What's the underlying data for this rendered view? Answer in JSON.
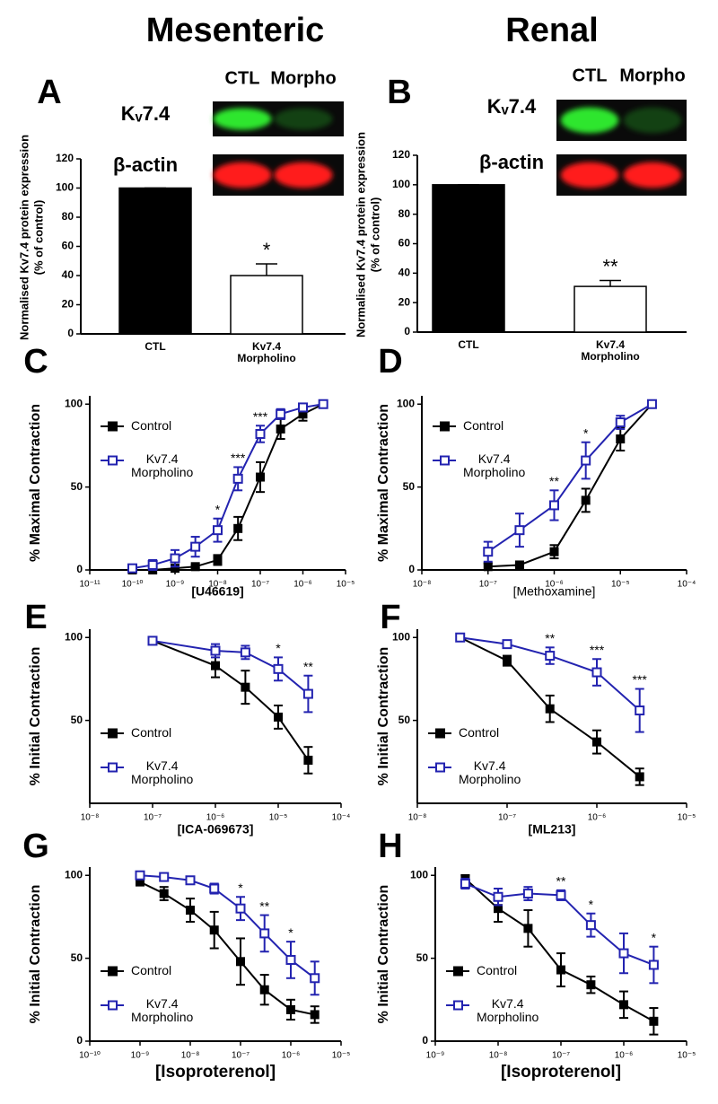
{
  "headers": [
    "Mesenteric",
    "Renal"
  ],
  "chart_data": [
    {
      "type": "bar",
      "panel": "A",
      "categories": [
        "CTL",
        "Kv7.4\nMorpholino"
      ],
      "values": [
        100,
        40
      ],
      "errors": [
        0,
        8
      ],
      "colors": [
        "#000000",
        "#ffffff"
      ],
      "ylabel": [
        "Normalised Kv7.4 protein expression",
        "(% of control)"
      ],
      "ylim": [
        0,
        120
      ],
      "yticks": [
        0,
        20,
        40,
        60,
        80,
        100,
        120
      ],
      "annotations": [
        {
          "text": "*",
          "category": 1
        }
      ],
      "blot": {
        "columns": [
          "CTL",
          "Morpho"
        ],
        "rows": [
          "Kᵥ7.4",
          "β-actin"
        ]
      }
    },
    {
      "type": "bar",
      "panel": "B",
      "categories": [
        "CTL",
        "Kv7.4\nMorpholino"
      ],
      "values": [
        100,
        31
      ],
      "errors": [
        0,
        4
      ],
      "colors": [
        "#000000",
        "#ffffff"
      ],
      "ylabel": [
        "Normalised Kv7.4 protein expression",
        "(% of control)"
      ],
      "ylim": [
        0,
        120
      ],
      "yticks": [
        0,
        20,
        40,
        60,
        80,
        100,
        120
      ],
      "annotations": [
        {
          "text": "**",
          "category": 1
        }
      ],
      "blot": {
        "columns": [
          "CTL",
          "Morpho"
        ],
        "rows": [
          "Kᵥ7.4",
          "β-actin"
        ]
      }
    },
    {
      "type": "line",
      "panel": "C",
      "xscale": "log",
      "x": [
        1e-10,
        3e-10,
        1e-09,
        3e-09,
        1e-08,
        3e-08,
        1e-07,
        3e-07,
        1e-06,
        3e-06
      ],
      "series": [
        {
          "name": "Control",
          "color": "#000000",
          "marker": "filled-square",
          "values": [
            0,
            0,
            1,
            2,
            6,
            25,
            56,
            85,
            94,
            100
          ],
          "errors": [
            0,
            0,
            1,
            1,
            3,
            7,
            9,
            6,
            4,
            0
          ]
        },
        {
          "name": "Kv7.4\nMorpholino",
          "color": "#2323b0",
          "marker": "open-square",
          "values": [
            1,
            3,
            7,
            14,
            24,
            55,
            82,
            94,
            98,
            100
          ],
          "errors": [
            1,
            3,
            5,
            6,
            7,
            7,
            5,
            3,
            2,
            0
          ]
        }
      ],
      "xlim": [
        1e-11,
        1e-05
      ],
      "xticks": [
        {
          "value": 1e-11,
          "label": "10⁻¹¹"
        },
        {
          "value": 1e-10,
          "label": "10⁻¹⁰"
        },
        {
          "value": 1e-09,
          "label": "10⁻⁹"
        },
        {
          "value": 1e-08,
          "label": "10⁻⁸"
        },
        {
          "value": 1e-07,
          "label": "10⁻⁷"
        },
        {
          "value": 1e-06,
          "label": "10⁻⁶"
        },
        {
          "value": 1e-05,
          "label": "10⁻⁵"
        }
      ],
      "ylim": [
        0,
        105
      ],
      "yticks": [
        0,
        50,
        100
      ],
      "xlabel": "[U46619]",
      "ylabel": "% Maximal Contraction",
      "legend": "upper left",
      "annotations": [
        {
          "text": "*",
          "x": 1e-08
        },
        {
          "text": "***",
          "x": 3e-08
        },
        {
          "text": "***",
          "x": 1e-07
        }
      ]
    },
    {
      "type": "line",
      "panel": "D",
      "xscale": "log",
      "x": [
        1e-07,
        3e-07,
        1e-06,
        3e-06,
        1e-05,
        3e-05
      ],
      "series": [
        {
          "name": "Control",
          "color": "#000000",
          "marker": "filled-square",
          "values": [
            2,
            3,
            11,
            42,
            79,
            100
          ],
          "errors": [
            2,
            1,
            4,
            7,
            7,
            0
          ]
        },
        {
          "name": "Kv7.4\nMorpholino",
          "color": "#2323b0",
          "marker": "open-square",
          "values": [
            11,
            24,
            39,
            66,
            89,
            100
          ],
          "errors": [
            6,
            10,
            9,
            11,
            4,
            0
          ]
        }
      ],
      "xlim": [
        1e-08,
        0.0001
      ],
      "xticks": [
        {
          "value": 1e-08,
          "label": "10⁻⁸"
        },
        {
          "value": 1e-07,
          "label": "10⁻⁷"
        },
        {
          "value": 1e-06,
          "label": "10⁻⁶"
        },
        {
          "value": 1e-05,
          "label": "10⁻⁵"
        },
        {
          "value": 0.0001,
          "label": "10⁻⁴"
        }
      ],
      "ylim": [
        0,
        105
      ],
      "yticks": [
        0,
        50,
        100
      ],
      "xlabel": "[Methoxamine]",
      "ylabel": "% Maximal Contraction",
      "legend": "upper left",
      "annotations": [
        {
          "text": "**",
          "x": 1e-06
        },
        {
          "text": "*",
          "x": 3e-06
        }
      ]
    },
    {
      "type": "line",
      "panel": "E",
      "xscale": "log",
      "x": [
        1e-07,
        1e-06,
        3e-06,
        1e-05,
        3e-05
      ],
      "series": [
        {
          "name": "Control",
          "color": "#000000",
          "marker": "filled-square",
          "values": [
            98,
            83,
            70,
            52,
            26
          ],
          "errors": [
            0,
            7,
            10,
            7,
            8
          ]
        },
        {
          "name": "Kv7.4\nMorpholino",
          "color": "#2323b0",
          "marker": "open-square",
          "values": [
            98,
            92,
            91,
            81,
            66
          ],
          "errors": [
            0,
            4,
            4,
            7,
            11
          ]
        }
      ],
      "xlim": [
        1e-08,
        0.0001
      ],
      "xticks": [
        {
          "value": 1e-08,
          "label": "10⁻⁸"
        },
        {
          "value": 1e-07,
          "label": "10⁻⁷"
        },
        {
          "value": 1e-06,
          "label": "10⁻⁶"
        },
        {
          "value": 1e-05,
          "label": "10⁻⁵"
        },
        {
          "value": 0.0001,
          "label": "10⁻⁴"
        }
      ],
      "ylim": [
        0,
        105
      ],
      "yticks": [
        50,
        100
      ],
      "xlabel": "[ICA-069673]",
      "ylabel": "% Initial Contraction",
      "legend": "lower left",
      "annotations": [
        {
          "text": "*",
          "x": 1e-05
        },
        {
          "text": "**",
          "x": 3e-05
        }
      ]
    },
    {
      "type": "line",
      "panel": "F",
      "xscale": "log",
      "x": [
        3e-08,
        1e-07,
        3e-07,
        1e-06,
        3e-06
      ],
      "series": [
        {
          "name": "Control",
          "color": "#000000",
          "marker": "filled-square",
          "values": [
            100,
            86,
            57,
            37,
            16
          ],
          "errors": [
            0,
            3,
            8,
            7,
            5
          ]
        },
        {
          "name": "Kv7.4\nMorpholino",
          "color": "#2323b0",
          "marker": "open-square",
          "values": [
            100,
            96,
            89,
            79,
            56
          ],
          "errors": [
            0,
            2,
            5,
            8,
            13
          ]
        }
      ],
      "xlim": [
        1e-08,
        1e-05
      ],
      "xticks": [
        {
          "value": 1e-08,
          "label": "10⁻⁸"
        },
        {
          "value": 1e-07,
          "label": "10⁻⁷"
        },
        {
          "value": 1e-06,
          "label": "10⁻⁶"
        },
        {
          "value": 1e-05,
          "label": "10⁻⁵"
        }
      ],
      "ylim": [
        0,
        105
      ],
      "yticks": [
        50,
        100
      ],
      "xlabel": "[ML213]",
      "ylabel": "% Initial Contraction",
      "legend": "lower left",
      "annotations": [
        {
          "text": "**",
          "x": 3e-07
        },
        {
          "text": "***",
          "x": 1e-06
        },
        {
          "text": "***",
          "x": 3e-06
        }
      ]
    },
    {
      "type": "line",
      "panel": "G",
      "xscale": "log",
      "x": [
        1e-09,
        3e-09,
        1e-08,
        3e-08,
        1e-07,
        3e-07,
        1e-06,
        3e-06
      ],
      "series": [
        {
          "name": "Control",
          "color": "#000000",
          "marker": "filled-square",
          "values": [
            96,
            89,
            79,
            67,
            48,
            31,
            19,
            16
          ],
          "errors": [
            2,
            4,
            7,
            11,
            14,
            9,
            6,
            5
          ]
        },
        {
          "name": "Kv7.4\nMorpholino",
          "color": "#2323b0",
          "marker": "open-square",
          "values": [
            100,
            99,
            97,
            92,
            80,
            65,
            49,
            38
          ],
          "errors": [
            1,
            1,
            1,
            3,
            7,
            11,
            11,
            10
          ]
        }
      ],
      "xlim": [
        1e-10,
        1e-05
      ],
      "xticks": [
        {
          "value": 1e-10,
          "label": "10⁻¹⁰"
        },
        {
          "value": 1e-09,
          "label": "10⁻⁹"
        },
        {
          "value": 1e-08,
          "label": "10⁻⁸"
        },
        {
          "value": 1e-07,
          "label": "10⁻⁷"
        },
        {
          "value": 1e-06,
          "label": "10⁻⁶"
        },
        {
          "value": 1e-05,
          "label": "10⁻⁵"
        }
      ],
      "ylim": [
        0,
        105
      ],
      "yticks": [
        0,
        50,
        100
      ],
      "xlabel": "[Isoproterenol]",
      "ylabel": "% Initial Contraction",
      "legend": "lower left",
      "annotations": [
        {
          "text": "*",
          "x": 1e-07
        },
        {
          "text": "**",
          "x": 3e-07
        },
        {
          "text": "*",
          "x": 1e-06
        }
      ]
    },
    {
      "type": "line",
      "panel": "H",
      "xscale": "log",
      "x": [
        3e-09,
        1e-08,
        3e-08,
        1e-07,
        3e-07,
        1e-06,
        3e-06
      ],
      "series": [
        {
          "name": "Control",
          "color": "#000000",
          "marker": "filled-square",
          "values": [
            98,
            80,
            68,
            43,
            34,
            22,
            12
          ],
          "errors": [
            2,
            8,
            11,
            10,
            5,
            8,
            8
          ]
        },
        {
          "name": "Kv7.4\nMorpholino",
          "color": "#2323b0",
          "marker": "open-square",
          "values": [
            95,
            87,
            89,
            88,
            70,
            53,
            46
          ],
          "errors": [
            3,
            5,
            4,
            3,
            7,
            12,
            11
          ]
        }
      ],
      "xlim": [
        1e-09,
        1e-05
      ],
      "xticks": [
        {
          "value": 1e-09,
          "label": "10⁻⁹"
        },
        {
          "value": 1e-08,
          "label": "10⁻⁸"
        },
        {
          "value": 1e-07,
          "label": "10⁻⁷"
        },
        {
          "value": 1e-06,
          "label": "10⁻⁶"
        },
        {
          "value": 1e-05,
          "label": "10⁻⁵"
        }
      ],
      "ylim": [
        0,
        105
      ],
      "yticks": [
        0,
        50,
        100
      ],
      "xlabel": "[Isoproterenol]",
      "ylabel": "% Initial Contraction",
      "legend": "lower left",
      "annotations": [
        {
          "text": "**",
          "x": 1e-07
        },
        {
          "text": "*",
          "x": 3e-07
        },
        {
          "text": "*",
          "x": 3e-06
        }
      ]
    }
  ]
}
